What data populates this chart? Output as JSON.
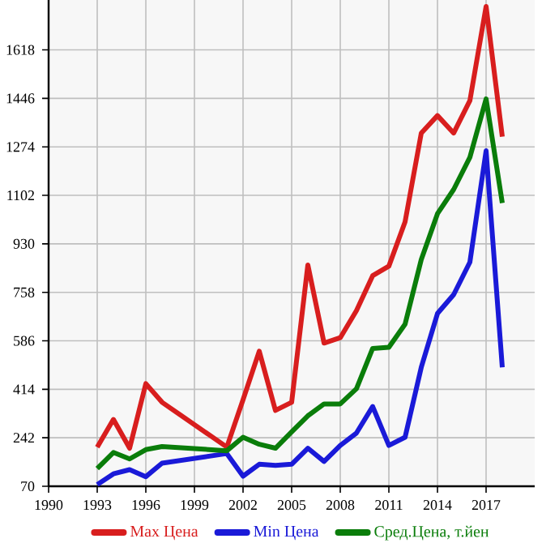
{
  "chart_data": {
    "type": "line",
    "x": [
      1993,
      1994,
      1995,
      1996,
      1997,
      2001,
      2002,
      2003,
      2004,
      2005,
      2006,
      2007,
      2008,
      2009,
      2010,
      2011,
      2012,
      2013,
      2014,
      2015,
      2016,
      2017,
      2018
    ],
    "series": [
      {
        "name": "Max Цена",
        "color": "#d81e1e",
        "values": [
          209,
          307,
          205,
          434,
          368,
          209,
          377,
          549,
          339,
          368,
          855,
          578,
          597,
          693,
          817,
          851,
          1008,
          1323,
          1385,
          1323,
          1438,
          1772,
          1310
        ]
      },
      {
        "name": "Min Цена",
        "color": "#1a1ad8",
        "values": [
          76,
          114,
          129,
          104,
          152,
          186,
          106,
          148,
          144,
          148,
          205,
          158,
          215,
          259,
          353,
          215,
          244,
          492,
          683,
          750,
          865,
          1260,
          492
        ]
      },
      {
        "name": "Сред.Цена, т.йен",
        "color": "#0a7d0a",
        "values": [
          133,
          190,
          167,
          200,
          211,
          196,
          244,
          219,
          205,
          263,
          320,
          362,
          362,
          416,
          559,
          563,
          645,
          874,
          1037,
          1123,
          1237,
          1444,
          1075
        ]
      }
    ],
    "xlim": [
      1990,
      2020
    ],
    "xticks": [
      1990,
      1993,
      1996,
      1999,
      2002,
      2005,
      2008,
      2011,
      2014,
      2017
    ],
    "ylim": [
      70,
      1795
    ],
    "yticks": [
      70,
      242,
      414,
      586,
      758,
      930,
      1102,
      1274,
      1446,
      1618
    ],
    "grid": true,
    "legend": "bottom",
    "marker": "none",
    "line_style": "solid"
  }
}
